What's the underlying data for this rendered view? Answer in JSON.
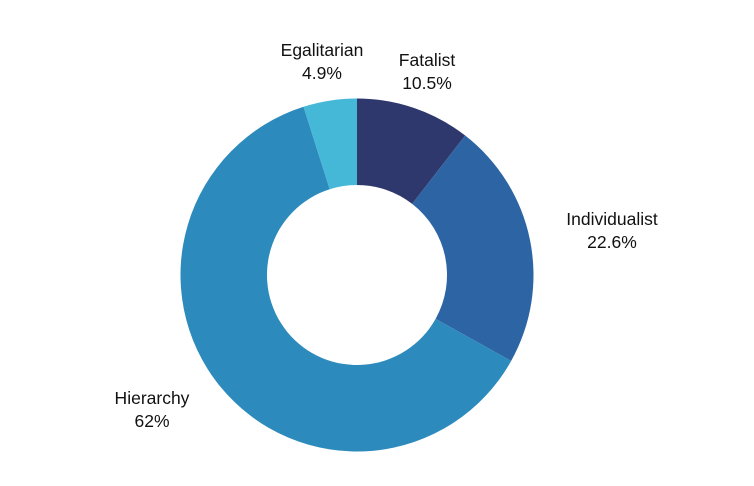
{
  "chart_data": {
    "type": "pie",
    "subtype": "donut",
    "title": "",
    "legend_position": "none",
    "labels_position": "outside",
    "start_angle_deg": 0,
    "direction": "clockwise",
    "inner_radius_ratio": 0.51,
    "background_color": "#ffffff",
    "label_text_color": "#111111",
    "slices": [
      {
        "label": "Fatalist",
        "value": 10.5,
        "value_label": "10.5%",
        "color": "#2f386d"
      },
      {
        "label": "Individualist",
        "value": 22.6,
        "value_label": "22.6%",
        "color": "#2d65a4"
      },
      {
        "label": "Hierarchy",
        "value": 62,
        "value_label": "62%",
        "color": "#2c8bbc"
      },
      {
        "label": "Egalitarian",
        "value": 4.9,
        "value_label": "4.9%",
        "color": "#45b8d8"
      }
    ]
  }
}
